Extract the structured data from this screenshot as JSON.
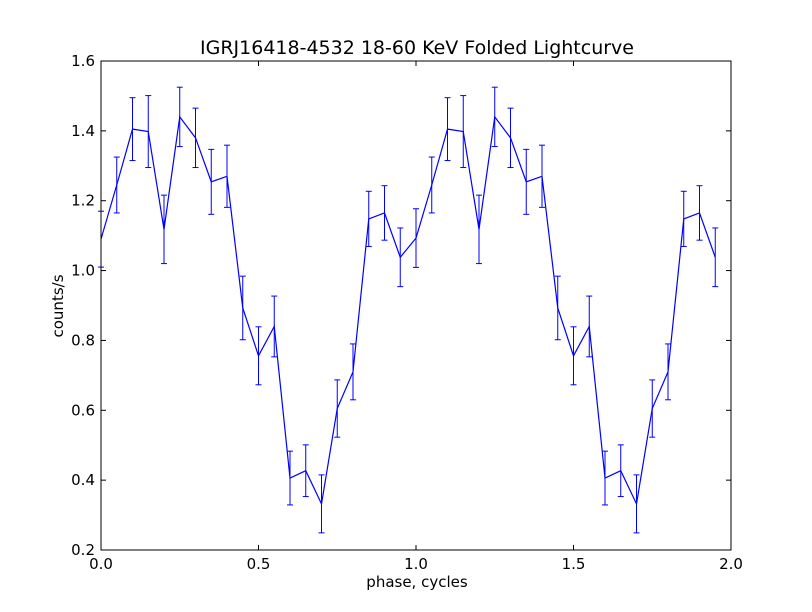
{
  "chart_data": {
    "type": "line",
    "title": "IGRJ16418-4532 18-60 KeV Folded Lightcurve",
    "xlabel": "phase, cycles",
    "ylabel": "counts/s",
    "xlim": [
      0.0,
      2.0
    ],
    "ylim": [
      0.2,
      1.6
    ],
    "xticks": [
      "0.0",
      "0.5",
      "1.0",
      "1.5",
      "2.0"
    ],
    "yticks": [
      "0.2",
      "0.4",
      "0.6",
      "0.8",
      "1.0",
      "1.2",
      "1.4",
      "1.6"
    ],
    "grid": false,
    "color": "#0000ff",
    "series": [
      {
        "x": [
          0.0,
          0.05,
          0.1,
          0.15,
          0.2,
          0.25,
          0.3,
          0.35,
          0.4,
          0.45,
          0.5,
          0.55,
          0.6,
          0.65,
          0.7,
          0.75,
          0.8,
          0.85,
          0.9,
          0.95,
          1.0,
          1.05,
          1.1,
          1.15,
          1.2,
          1.25,
          1.3,
          1.35,
          1.4,
          1.45,
          1.5,
          1.55,
          1.6,
          1.65,
          1.7,
          1.75,
          1.8,
          1.85,
          1.9,
          1.95
        ],
        "y": [
          1.09,
          1.245,
          1.405,
          1.398,
          1.118,
          1.44,
          1.38,
          1.254,
          1.27,
          0.893,
          0.756,
          0.84,
          0.406,
          0.427,
          0.332,
          0.605,
          0.71,
          1.148,
          1.165,
          1.038,
          1.093,
          1.245,
          1.405,
          1.398,
          1.118,
          1.44,
          1.38,
          1.254,
          1.27,
          0.893,
          0.756,
          0.84,
          0.406,
          0.427,
          0.332,
          0.605,
          0.71,
          1.148,
          1.165,
          1.038
        ],
        "err": [
          0.08,
          0.08,
          0.09,
          0.103,
          0.098,
          0.085,
          0.085,
          0.093,
          0.089,
          0.091,
          0.083,
          0.087,
          0.077,
          0.074,
          0.083,
          0.082,
          0.08,
          0.079,
          0.078,
          0.084,
          0.084,
          0.08,
          0.09,
          0.103,
          0.098,
          0.085,
          0.085,
          0.093,
          0.089,
          0.091,
          0.083,
          0.087,
          0.077,
          0.074,
          0.083,
          0.082,
          0.08,
          0.079,
          0.078,
          0.084
        ]
      }
    ]
  }
}
